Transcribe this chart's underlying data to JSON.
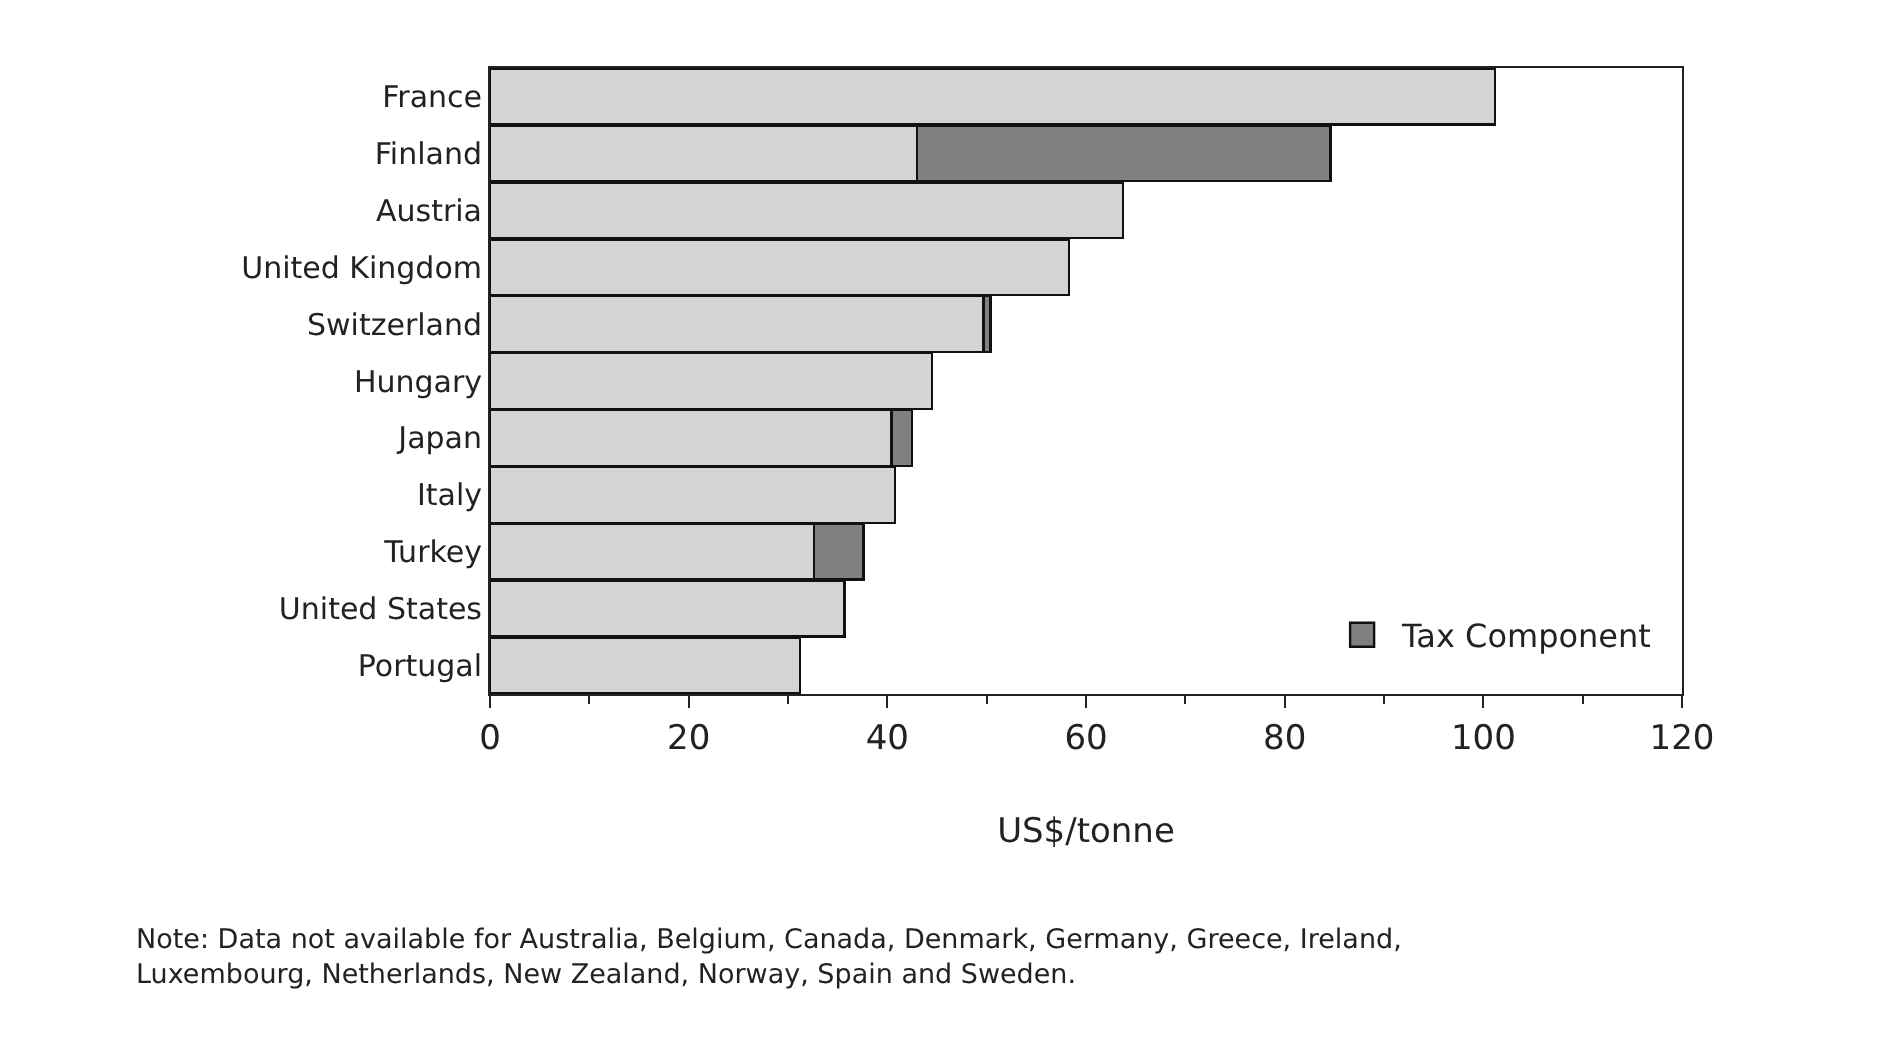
{
  "chart_data": {
    "type": "bar",
    "orientation": "horizontal",
    "stacked": true,
    "categories": [
      "France",
      "Finland",
      "Austria",
      "United Kingdom",
      "Switzerland",
      "Hungary",
      "Japan",
      "Italy",
      "Turkey",
      "United States",
      "Portugal"
    ],
    "series": [
      {
        "color": "#d3d4d6",
        "values": [
          101.2,
          43.0,
          63.7,
          58.3,
          49.7,
          44.5,
          40.4,
          40.8,
          32.6,
          35.7,
          31.2
        ]
      },
      {
        "name": "Tax Component",
        "color": "#808083",
        "values": [
          null,
          41.6,
          null,
          null,
          0.7,
          null,
          2.1,
          null,
          5.0,
          null,
          null
        ]
      }
    ],
    "xlabel": "US$/tonne",
    "xlim": [
      0,
      120
    ],
    "xticks": [
      0,
      20,
      40,
      60,
      80,
      100,
      120
    ],
    "legend": "bottom right",
    "annotations": [
      "Note: Data not available for Australia, Belgium, Canada, Denmark, Germany, Greece, Ireland,\nLuxembourg, Netherlands, New Zealand, Norway, Spain and Sweden."
    ]
  }
}
